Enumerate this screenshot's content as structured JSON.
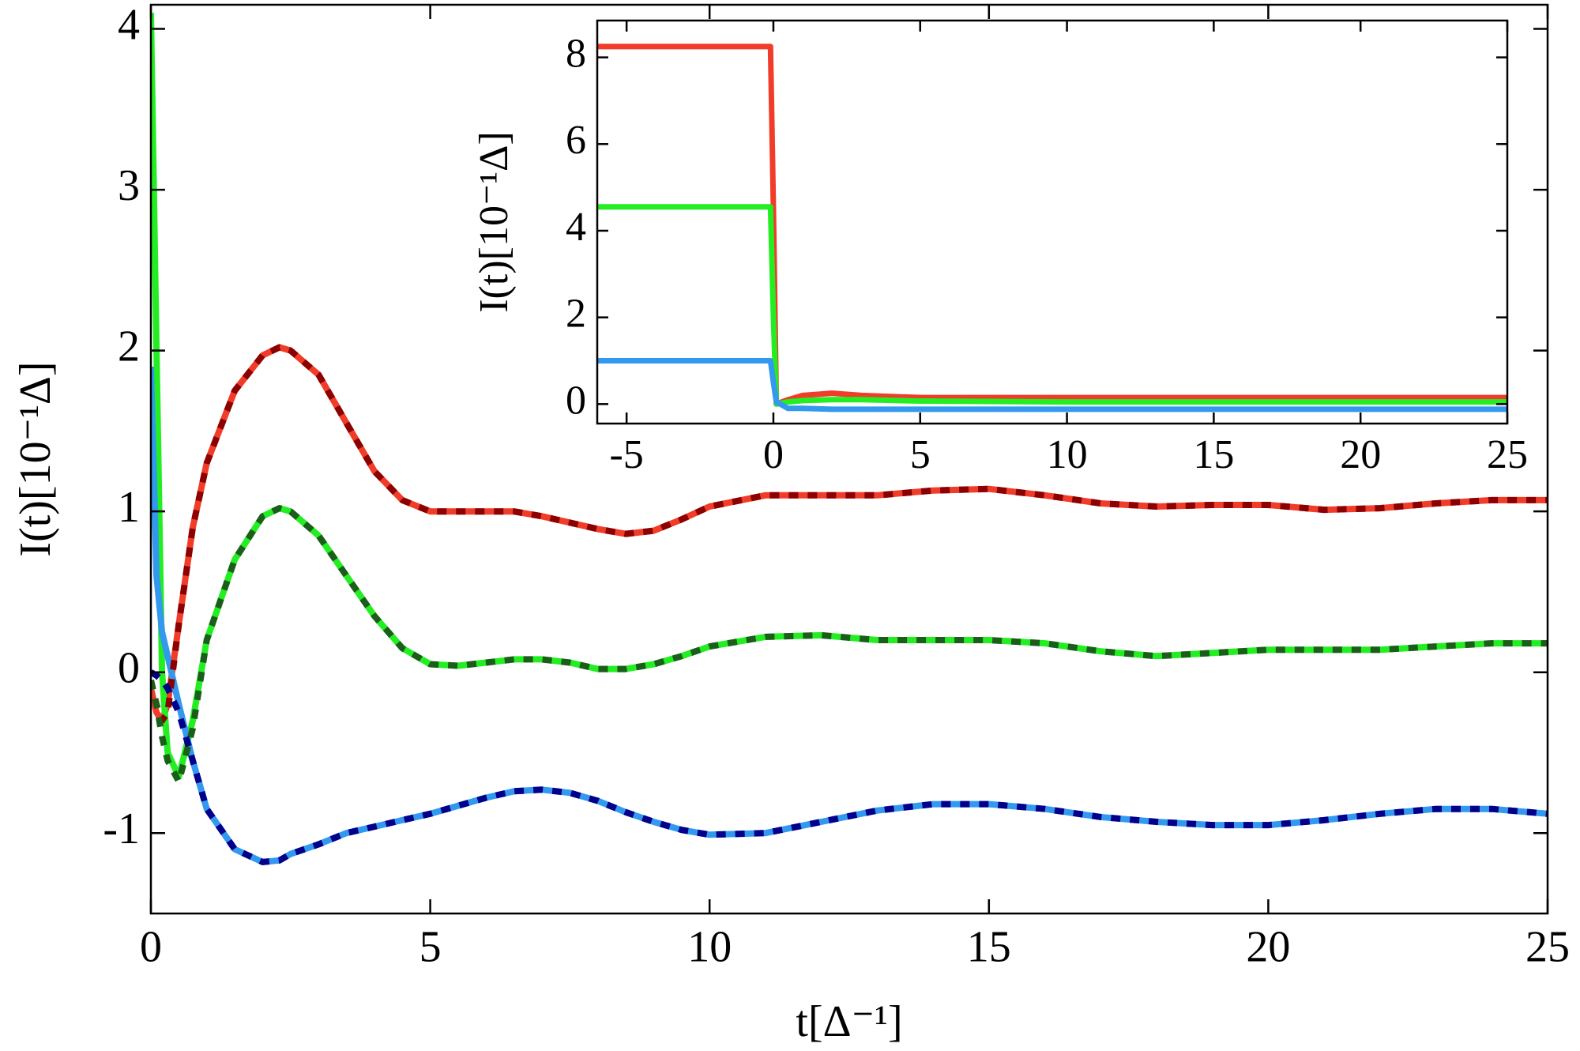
{
  "chart_data": [
    {
      "type": "line",
      "x_label": "t[Δ⁻¹]",
      "y_label": "I(t)[10⁻¹Δ]",
      "xlim": [
        0,
        25
      ],
      "ylim": [
        -1.5,
        4.15
      ],
      "xticks": [
        0,
        5,
        10,
        15,
        20,
        25
      ],
      "yticks": [
        -1,
        0,
        1,
        2,
        3,
        4
      ],
      "x": [
        0,
        0.1,
        0.2,
        0.3,
        0.5,
        0.75,
        1,
        1.5,
        2,
        2.3,
        2.5,
        3,
        3.5,
        4,
        4.5,
        5,
        5.5,
        6,
        6.5,
        7,
        7.5,
        8,
        8.5,
        9,
        9.5,
        10,
        11,
        12,
        13,
        14,
        15,
        16,
        17,
        18,
        19,
        20,
        21,
        22,
        23,
        24,
        25
      ],
      "series": [
        {
          "color": "#f03c28",
          "style": "solid",
          "values": [
            -0.1,
            -0.25,
            -0.3,
            -0.2,
            0.3,
            0.9,
            1.3,
            1.75,
            1.97,
            2.02,
            2.0,
            1.85,
            1.55,
            1.25,
            1.07,
            1.0,
            1.0,
            1.0,
            1.0,
            0.97,
            0.93,
            0.89,
            0.86,
            0.88,
            0.95,
            1.03,
            1.1,
            1.1,
            1.1,
            1.13,
            1.14,
            1.1,
            1.05,
            1.03,
            1.04,
            1.04,
            1.01,
            1.02,
            1.05,
            1.07,
            1.07
          ]
        },
        {
          "color": "#22ee22",
          "style": "solid",
          "values": [
            4.1,
            2.0,
            0.0,
            -0.5,
            -0.65,
            -0.3,
            0.2,
            0.7,
            0.97,
            1.02,
            1.0,
            0.85,
            0.6,
            0.35,
            0.15,
            0.05,
            0.04,
            0.06,
            0.08,
            0.08,
            0.06,
            0.02,
            0.02,
            0.05,
            0.1,
            0.16,
            0.22,
            0.23,
            0.2,
            0.2,
            0.2,
            0.18,
            0.13,
            0.1,
            0.12,
            0.14,
            0.14,
            0.14,
            0.16,
            0.18,
            0.18
          ]
        },
        {
          "color": "#3399ee",
          "style": "solid",
          "values": [
            1.9,
            0.6,
            0.25,
            0.1,
            -0.2,
            -0.55,
            -0.85,
            -1.1,
            -1.18,
            -1.17,
            -1.13,
            -1.07,
            -1.0,
            -0.96,
            -0.92,
            -0.88,
            -0.83,
            -0.78,
            -0.74,
            -0.73,
            -0.75,
            -0.8,
            -0.87,
            -0.93,
            -0.98,
            -1.01,
            -1.0,
            -0.93,
            -0.86,
            -0.82,
            -0.82,
            -0.85,
            -0.9,
            -0.93,
            -0.95,
            -0.95,
            -0.92,
            -0.88,
            -0.85,
            -0.85,
            -0.88
          ]
        },
        {
          "color": "#8b0000",
          "style": "dashed",
          "values": [
            -0.05,
            -0.2,
            -0.3,
            -0.25,
            0.3,
            0.9,
            1.3,
            1.75,
            1.97,
            2.02,
            2.0,
            1.85,
            1.55,
            1.25,
            1.07,
            1.0,
            1.0,
            1.0,
            1.0,
            0.97,
            0.93,
            0.89,
            0.86,
            0.88,
            0.95,
            1.03,
            1.1,
            1.1,
            1.1,
            1.13,
            1.14,
            1.1,
            1.05,
            1.03,
            1.04,
            1.04,
            1.01,
            1.02,
            1.05,
            1.07,
            1.07
          ]
        },
        {
          "color": "#1a5e1a",
          "style": "dashed",
          "values": [
            -0.05,
            -0.2,
            -0.4,
            -0.55,
            -0.68,
            -0.35,
            0.2,
            0.7,
            0.97,
            1.02,
            1.0,
            0.85,
            0.6,
            0.35,
            0.15,
            0.05,
            0.04,
            0.06,
            0.08,
            0.08,
            0.06,
            0.02,
            0.02,
            0.05,
            0.1,
            0.16,
            0.22,
            0.23,
            0.2,
            0.2,
            0.2,
            0.18,
            0.13,
            0.1,
            0.12,
            0.14,
            0.14,
            0.14,
            0.16,
            0.18,
            0.18
          ]
        },
        {
          "color": "#00008b",
          "style": "dashed",
          "values": [
            0.0,
            -0.02,
            -0.05,
            -0.1,
            -0.25,
            -0.55,
            -0.85,
            -1.1,
            -1.18,
            -1.17,
            -1.13,
            -1.07,
            -1.0,
            -0.96,
            -0.92,
            -0.88,
            -0.83,
            -0.78,
            -0.74,
            -0.73,
            -0.75,
            -0.8,
            -0.87,
            -0.93,
            -0.98,
            -1.01,
            -1.0,
            -0.93,
            -0.86,
            -0.82,
            -0.82,
            -0.85,
            -0.9,
            -0.93,
            -0.95,
            -0.95,
            -0.92,
            -0.88,
            -0.85,
            -0.85,
            -0.88
          ]
        }
      ]
    },
    {
      "type": "line",
      "y_label": "I(t)[10⁻¹Δ]",
      "xlim": [
        -6,
        25
      ],
      "ylim": [
        -0.45,
        8.85
      ],
      "xticks": [
        -5,
        0,
        5,
        10,
        15,
        20,
        25
      ],
      "yticks": [
        0,
        2,
        4,
        6,
        8
      ],
      "x": [
        -6,
        -0.1,
        0,
        0.1,
        0.5,
        1,
        2,
        3,
        5,
        10,
        15,
        20,
        25
      ],
      "series": [
        {
          "color": "#f03c28",
          "style": "solid",
          "values": [
            8.25,
            8.25,
            4.5,
            0.0,
            0.1,
            0.2,
            0.25,
            0.2,
            0.15,
            0.15,
            0.15,
            0.15,
            0.15
          ]
        },
        {
          "color": "#22ee22",
          "style": "solid",
          "values": [
            4.55,
            4.55,
            2.0,
            0.0,
            0.05,
            0.08,
            0.1,
            0.1,
            0.07,
            0.05,
            0.05,
            0.05,
            0.05
          ]
        },
        {
          "color": "#3399ee",
          "style": "solid",
          "values": [
            1.0,
            1.0,
            0.5,
            0.05,
            -0.1,
            -0.1,
            -0.12,
            -0.12,
            -0.12,
            -0.12,
            -0.12,
            -0.12,
            -0.12
          ]
        }
      ]
    }
  ]
}
